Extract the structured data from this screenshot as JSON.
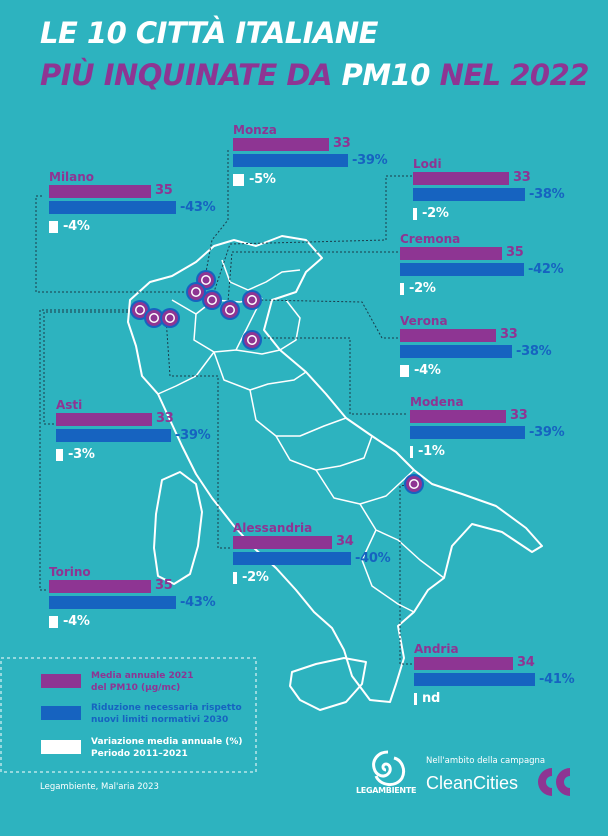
{
  "title": {
    "line1": "LE 10 CITTÀ ITALIANE",
    "line2_part1": "PIÙ INQUINATE DA ",
    "line2_part2": "PM10",
    "line2_part3": " NEL 2022"
  },
  "colors": {
    "background": "#2db3bf",
    "magenta": "#8e3593",
    "blue": "#1663c0",
    "white": "#ffffff"
  },
  "chart_data": {
    "type": "bar",
    "categories": [
      "Monza",
      "Milano",
      "Lodi",
      "Cremona",
      "Verona",
      "Asti",
      "Modena",
      "Alessandria",
      "Torino",
      "Andria"
    ],
    "series": [
      {
        "name": "Media annuale 2021 del PM10 (µg/mc)",
        "values": [
          33,
          35,
          33,
          35,
          33,
          33,
          33,
          34,
          35,
          34
        ]
      },
      {
        "name": "Riduzione necessaria rispetto nuovi limiti normativi 2030",
        "values": [
          -39,
          -43,
          -38,
          -42,
          -38,
          -39,
          -39,
          -40,
          -43,
          -41
        ]
      },
      {
        "name": "Variazione media annuale (%) Periodo 2011–2021",
        "values": [
          -5,
          -4,
          -2,
          -2,
          -4,
          -3,
          -1,
          -2,
          -4,
          null
        ]
      }
    ],
    "labels": {
      "pm10": [
        "33",
        "35",
        "33",
        "35",
        "33",
        "33",
        "33",
        "34",
        "35",
        "34"
      ],
      "reduction": [
        "-39%",
        "-43%",
        "-38%",
        "-42%",
        "-38%",
        "-39%",
        "-39%",
        "-40%",
        "-43%",
        "-41%"
      ],
      "variation": [
        "-5%",
        "-4%",
        "-2%",
        "-2%",
        "-4%",
        "-3%",
        "-1%",
        "-2%",
        "-4%",
        "nd"
      ]
    }
  },
  "legend": {
    "items": [
      {
        "line1": "Media annuale 2021",
        "line2": "del PM10 (µg/mc)",
        "color": "#8e3593"
      },
      {
        "line1": "Riduzione necessaria rispetto",
        "line2": "nuovi limiti normativi 2030",
        "color": "#1663c0"
      },
      {
        "line1": "Variazione media annuale (%)",
        "line2": "Periodo 2011–2021",
        "color": "#ffffff"
      }
    ]
  },
  "footer": {
    "source": "Legambiente, Mal'aria 2023",
    "legambiente_logo": "LEGAMBIENTE",
    "campaign_text": "Nell'ambito della campagna",
    "cleancities": "CleanCities"
  }
}
